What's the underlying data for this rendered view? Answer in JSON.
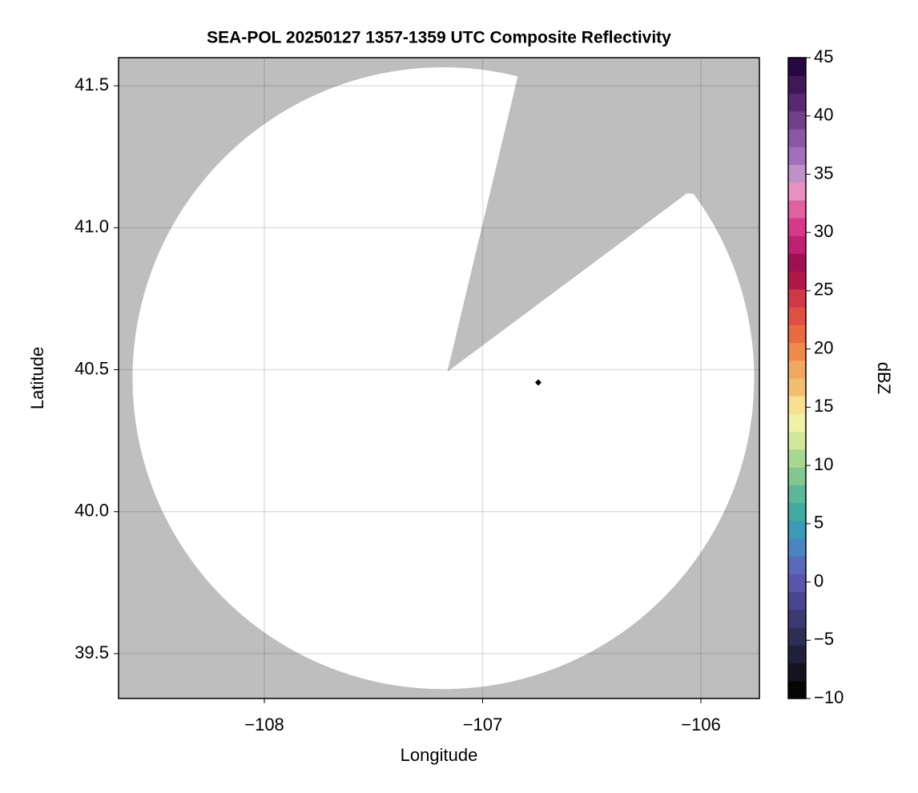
{
  "chart_data": {
    "type": "radar-map",
    "title": "SEA-POL 20250127 1357-1359 UTC Composite Reflectivity",
    "x_label": "Longitude",
    "y_label": "Latitude",
    "xlim": [
      -108.668,
      -105.732
    ],
    "ylim": [
      39.342,
      41.599
    ],
    "xticks": [
      {
        "value": -108,
        "label": "−108"
      },
      {
        "value": -107,
        "label": "−107"
      },
      {
        "value": -106,
        "label": "−106"
      }
    ],
    "yticks": [
      {
        "value": 39.5,
        "label": "39.5"
      },
      {
        "value": 40.0,
        "label": "40.0"
      },
      {
        "value": 40.5,
        "label": "40.5"
      },
      {
        "value": 41.0,
        "label": "41.0"
      },
      {
        "value": 41.5,
        "label": "41.5"
      }
    ],
    "grid": true,
    "background_color": "#bebebe",
    "coverage_color": "#ffffff",
    "coverage": {
      "center": [
        -107.18,
        40.47
      ],
      "radius_lon": 1.424,
      "radius_lat": 1.095,
      "blocked_wedge": [
        [
          -106.84,
          41.53
        ],
        [
          -106.066,
          41.12
        ]
      ]
    },
    "marker": {
      "x": -106.745,
      "y": 40.455,
      "color": "#000000"
    },
    "colorbar": {
      "label": "dBZ",
      "lim": [
        -10,
        45
      ],
      "ticks": [
        {
          "value": -10,
          "label": "−10"
        },
        {
          "value": -5,
          "label": "−5"
        },
        0,
        5,
        10,
        15,
        20,
        25,
        30,
        35,
        40,
        45
      ],
      "colors": [
        "#050505",
        "#141420",
        "#20203a",
        "#2e2e55",
        "#3c3a70",
        "#4a4590",
        "#5a55a8",
        "#5a6ab8",
        "#4a85c0",
        "#3a9ab8",
        "#40aaa0",
        "#5ab896",
        "#80c890",
        "#a8d890",
        "#d0e89a",
        "#f0f0a8",
        "#f8e090",
        "#f0c070",
        "#f0a860",
        "#f08a48",
        "#e86a40",
        "#e05040",
        "#d03848",
        "#b01848",
        "#a01050",
        "#c02070",
        "#d83888",
        "#e060a0",
        "#e890c0",
        "#c090c8",
        "#a070b8",
        "#8858a0",
        "#704088",
        "#582870",
        "#401858",
        "#280840"
      ]
    }
  }
}
